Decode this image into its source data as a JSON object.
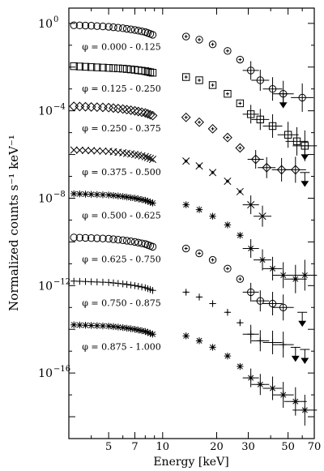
{
  "chart_data": {
    "type": "scatter",
    "xlabel": "Energy [keV]",
    "ylabel": "Normalized counts s⁻¹ keV⁻¹",
    "xscale": "log",
    "yscale": "log",
    "xlim": [
      3.0,
      70
    ],
    "ylim": [
      1e-19,
      5
    ],
    "x_ticks": [
      5,
      7,
      10,
      20,
      30,
      50,
      70
    ],
    "y_ticks": [
      {
        "value": 1,
        "base": "10",
        "exp": "0"
      },
      {
        "value": 0.0001,
        "base": "10",
        "exp": "−4"
      },
      {
        "value": 1e-08,
        "base": "10",
        "exp": "−8"
      },
      {
        "value": 1e-12,
        "base": "10",
        "exp": "−12"
      },
      {
        "value": 1e-16,
        "base": "10",
        "exp": "−16"
      }
    ],
    "series": [
      {
        "name": "φ = 0.000 - 0.125",
        "marker": "circle",
        "level": 0.8,
        "low": [
          [
            3.2,
            0.82
          ],
          [
            4.0,
            0.78
          ],
          [
            5.0,
            0.7
          ],
          [
            6.0,
            0.6
          ],
          [
            7.0,
            0.5
          ],
          [
            8.0,
            0.4
          ],
          [
            8.8,
            0.3
          ]
        ],
        "high": [
          [
            13.5,
            0.25
          ],
          [
            16,
            0.18
          ],
          [
            19,
            0.11
          ],
          [
            23,
            0.055
          ],
          [
            27,
            0.022
          ],
          [
            31,
            0.007
          ],
          [
            35,
            0.0025
          ],
          [
            41,
            0.001
          ],
          [
            47,
            0.0006
          ],
          [
            60,
            0.0004
          ]
        ],
        "upper_limits": [
          [
            47,
            0.0006
          ]
        ]
      },
      {
        "name": "φ = 0.125 - 0.250",
        "marker": "square",
        "level": 0.01,
        "low": [
          [
            3.2,
            0.011
          ],
          [
            4.0,
            0.01
          ],
          [
            5.0,
            0.0092
          ],
          [
            6.0,
            0.0085
          ],
          [
            7.0,
            0.0075
          ],
          [
            8.0,
            0.0065
          ],
          [
            8.8,
            0.0055
          ]
        ],
        "high": [
          [
            13.5,
            0.0035
          ],
          [
            16,
            0.0025
          ],
          [
            19,
            0.0015
          ],
          [
            23,
            0.0006
          ],
          [
            27,
            0.00022
          ],
          [
            31,
            7e-05
          ],
          [
            35,
            4e-05
          ],
          [
            41,
            2e-05
          ],
          [
            50,
            8e-06
          ],
          [
            56,
            4e-06
          ],
          [
            62,
            2.5e-06
          ]
        ],
        "upper_limits": [
          [
            62,
            2.5e-06
          ]
        ]
      },
      {
        "name": "φ = 0.250 - 0.375",
        "marker": "diamond",
        "level": 0.00015,
        "low": [
          [
            3.2,
            0.00016
          ],
          [
            4.0,
            0.00015
          ],
          [
            5.0,
            0.00014
          ],
          [
            6.0,
            0.00012
          ],
          [
            7.0,
            0.0001
          ],
          [
            8.0,
            8e-05
          ],
          [
            8.8,
            6e-05
          ]
        ],
        "high": [
          [
            13.5,
            5e-05
          ],
          [
            16,
            3e-05
          ],
          [
            19,
            1.5e-05
          ],
          [
            23,
            6e-06
          ],
          [
            27,
            2e-06
          ],
          [
            33,
            6e-07
          ],
          [
            38,
            2.5e-07
          ],
          [
            46,
            2e-07
          ],
          [
            55,
            2e-07
          ]
        ],
        "upper_limits": [
          [
            62,
            1.5e-07
          ]
        ]
      },
      {
        "name": "φ = 0.375 - 0.500",
        "marker": "cross",
        "level": 1.5e-06,
        "low": [
          [
            3.2,
            1.6e-06
          ],
          [
            4.0,
            1.5e-06
          ],
          [
            5.0,
            1.4e-06
          ],
          [
            6.0,
            1.2e-06
          ],
          [
            7.0,
            1e-06
          ],
          [
            8.0,
            8e-07
          ],
          [
            8.8,
            6e-07
          ]
        ],
        "high": [
          [
            13.5,
            5e-07
          ],
          [
            16,
            3e-07
          ],
          [
            19,
            1.5e-07
          ],
          [
            23,
            6e-08
          ],
          [
            27,
            2e-08
          ],
          [
            31,
            5e-09
          ],
          [
            36,
            1.5e-09
          ]
        ],
        "upper_limits": []
      },
      {
        "name": "φ = 0.500 - 0.625",
        "marker": "star",
        "level": 1.5e-08,
        "low": [
          [
            3.2,
            1.6e-08
          ],
          [
            4.0,
            1.5e-08
          ],
          [
            5.0,
            1.4e-08
          ],
          [
            6.0,
            1.2e-08
          ],
          [
            7.0,
            1e-08
          ],
          [
            8.0,
            8e-09
          ],
          [
            8.8,
            6e-09
          ]
        ],
        "high": [
          [
            13.5,
            5e-09
          ],
          [
            16,
            3e-09
          ],
          [
            19,
            1.5e-09
          ],
          [
            23,
            6e-10
          ],
          [
            27,
            2e-10
          ],
          [
            31,
            5e-11
          ],
          [
            36,
            1.5e-11
          ],
          [
            41,
            6e-12
          ],
          [
            47,
            3e-12
          ],
          [
            55,
            2e-12
          ],
          [
            62,
            3e-12
          ]
        ],
        "upper_limits": []
      },
      {
        "name": "φ = 0.625 - 0.750",
        "marker": "circle",
        "level": 1.5e-10,
        "low": [
          [
            3.2,
            1.6e-10
          ],
          [
            4.0,
            1.5e-10
          ],
          [
            5.0,
            1.4e-10
          ],
          [
            6.0,
            1.2e-10
          ],
          [
            7.0,
            1e-10
          ],
          [
            8.0,
            8e-11
          ],
          [
            8.8,
            6e-11
          ]
        ],
        "high": [
          [
            13.5,
            5e-11
          ],
          [
            16,
            3e-11
          ],
          [
            19,
            1.5e-11
          ],
          [
            23,
            6e-12
          ],
          [
            27,
            2e-12
          ],
          [
            31,
            5e-13
          ],
          [
            35,
            2e-13
          ],
          [
            41,
            1.5e-13
          ],
          [
            47,
            1e-13
          ]
        ],
        "upper_limits": [
          [
            60,
            6e-14
          ]
        ]
      },
      {
        "name": "φ = 0.750 - 0.875",
        "marker": "plus",
        "level": 1.5e-12,
        "low": [
          [
            3.2,
            1.6e-12
          ],
          [
            4.0,
            1.5e-12
          ],
          [
            5.0,
            1.4e-12
          ],
          [
            6.0,
            1.2e-12
          ],
          [
            7.0,
            1e-12
          ],
          [
            8.0,
            8e-13
          ],
          [
            8.8,
            6e-13
          ]
        ],
        "high": [
          [
            13.5,
            5e-13
          ],
          [
            16,
            3e-13
          ],
          [
            19,
            1.5e-13
          ],
          [
            23,
            6e-14
          ],
          [
            27,
            2e-14
          ],
          [
            31,
            6e-15
          ],
          [
            35,
            3e-15
          ],
          [
            41,
            2.5e-15
          ],
          [
            47,
            2e-15
          ]
        ],
        "upper_limits": [
          [
            55,
            1.5e-15
          ],
          [
            62,
            1.2e-15
          ]
        ]
      },
      {
        "name": "φ = 0.875 - 1.000",
        "marker": "asterisk",
        "level": 1.5e-14,
        "low": [
          [
            3.2,
            1.6e-14
          ],
          [
            4.0,
            1.5e-14
          ],
          [
            5.0,
            1.4e-14
          ],
          [
            6.0,
            1.2e-14
          ],
          [
            7.0,
            1e-14
          ],
          [
            8.0,
            8e-15
          ],
          [
            8.8,
            6e-15
          ]
        ],
        "high": [
          [
            13.5,
            5e-15
          ],
          [
            16,
            3e-15
          ],
          [
            19,
            1.5e-15
          ],
          [
            23,
            6e-16
          ],
          [
            27,
            2e-16
          ],
          [
            31,
            6e-17
          ],
          [
            35,
            3e-17
          ],
          [
            41,
            2e-17
          ],
          [
            47,
            1e-17
          ],
          [
            55,
            5e-18
          ],
          [
            62,
            2e-18
          ]
        ],
        "upper_limits": []
      }
    ]
  }
}
